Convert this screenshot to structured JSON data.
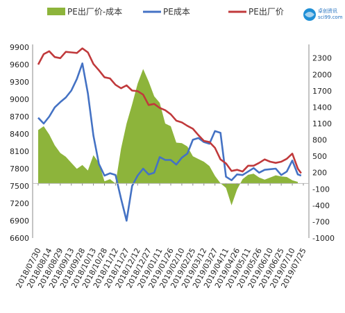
{
  "logo": {
    "line1": "卓创资讯",
    "line2": "sci99.com"
  },
  "chart_data": {
    "type": "line",
    "title": "",
    "xlabel": "",
    "ylabel_left": "",
    "ylabel_right": "",
    "left_axis": {
      "min": 6600,
      "max": 9900,
      "step": 300,
      "ticks": [
        "6600",
        "6900",
        "7200",
        "7500",
        "7800",
        "8100",
        "8400",
        "8700",
        "9000",
        "9300",
        "9600",
        "9900"
      ]
    },
    "right_axis": {
      "min": -1000,
      "max": 2500,
      "step": 300,
      "ticks": [
        "-1000",
        "-700",
        "-400",
        "-100",
        "200",
        "500",
        "800",
        "1100",
        "1400",
        "1700",
        "2000",
        "2300"
      ]
    },
    "x_ticks": [
      "2018/07/30",
      "2018/08/14",
      "2018/08/29",
      "2018/09/13",
      "2018/09/28",
      "2018/10/13",
      "2018/10/28",
      "2018/11/12",
      "2018/11/27",
      "2018/12/12",
      "2018/12/27",
      "2019/01/11",
      "2019/01/26",
      "2019/02/10",
      "2019/02/25",
      "2019/03/12",
      "2019/03/27",
      "2019/04/11",
      "2019/04/26",
      "2019/05/11",
      "2019/05/26",
      "2019/06/10",
      "2019/06/25",
      "2019/07/10",
      "2019/07/25"
    ],
    "grid": false,
    "legend_position": "top",
    "series": [
      {
        "name": "PE出厂价-成本",
        "kind": "area",
        "axis": "right",
        "color": "#8db43b",
        "x": [
          0,
          0.5,
          1,
          1.5,
          2,
          2.5,
          3,
          3.5,
          4,
          4.5,
          5,
          5.5,
          6,
          6.5,
          7,
          7.5,
          8,
          8.5,
          9,
          9.5,
          10,
          10.5,
          11,
          11.5,
          12,
          12.5,
          13,
          13.5,
          14,
          14.5,
          15,
          15.5,
          16,
          16.5,
          17,
          17.5,
          18,
          18.5,
          19,
          19.5,
          20,
          20.5,
          21,
          21.5,
          22,
          22.5,
          23,
          23.5
        ],
        "values": [
          980,
          1050,
          900,
          700,
          560,
          490,
          380,
          270,
          340,
          240,
          520,
          380,
          40,
          80,
          0,
          640,
          1100,
          1450,
          1830,
          2100,
          1870,
          1600,
          1480,
          1100,
          1050,
          750,
          740,
          680,
          500,
          450,
          400,
          320,
          140,
          5,
          -80,
          -400,
          -110,
          80,
          160,
          180,
          110,
          70,
          110,
          150,
          130,
          120,
          60,
          30
        ]
      },
      {
        "name": "PE成本",
        "kind": "line",
        "axis": "left",
        "color": "#4472c4",
        "x": [
          0,
          0.5,
          1,
          1.5,
          2,
          2.5,
          3,
          3.5,
          4,
          4.5,
          5,
          5.5,
          6,
          6.5,
          7,
          7.5,
          8,
          8.5,
          9,
          9.5,
          10,
          10.5,
          11,
          11.5,
          12,
          12.5,
          13,
          13.5,
          14,
          14.5,
          15,
          15.5,
          16,
          16.5,
          17,
          17.5,
          18,
          18.5,
          19,
          19.5,
          20,
          20.5,
          21,
          21.5,
          22,
          22.5,
          23,
          23.5,
          23.8
        ],
        "values": [
          8680,
          8580,
          8700,
          8860,
          8950,
          9030,
          9150,
          9350,
          9620,
          9100,
          8370,
          7880,
          7680,
          7720,
          7690,
          7280,
          6900,
          7500,
          7680,
          7800,
          7700,
          7730,
          8000,
          7950,
          7950,
          7870,
          7990,
          8060,
          8300,
          8330,
          8260,
          8230,
          8450,
          8420,
          7660,
          7600,
          7700,
          7690,
          7750,
          7810,
          7730,
          7780,
          7790,
          7800,
          7690,
          7750,
          7940,
          7700,
          7680
        ]
      },
      {
        "name": "PE出厂价",
        "kind": "line",
        "axis": "left",
        "color": "#c0393b",
        "x": [
          0,
          0.5,
          1,
          1.5,
          2,
          2.5,
          3,
          3.5,
          4,
          4.5,
          5,
          5.5,
          6,
          6.5,
          7,
          7.5,
          8,
          8.5,
          9,
          9.5,
          10,
          10.5,
          11,
          11.5,
          12,
          12.5,
          13,
          13.5,
          14,
          14.5,
          15,
          15.5,
          16,
          16.5,
          17,
          17.5,
          18,
          18.5,
          19,
          19.5,
          20,
          20.5,
          21,
          21.5,
          22,
          22.5,
          23,
          23.5,
          23.8
        ],
        "values": [
          9600,
          9780,
          9830,
          9730,
          9710,
          9820,
          9810,
          9800,
          9880,
          9810,
          9610,
          9500,
          9380,
          9360,
          9250,
          9190,
          9240,
          9150,
          9140,
          9080,
          8900,
          8920,
          8850,
          8810,
          8740,
          8630,
          8600,
          8540,
          8490,
          8380,
          8280,
          8260,
          8160,
          7960,
          7890,
          7760,
          7780,
          7750,
          7850,
          7850,
          7900,
          7960,
          7920,
          7900,
          7920,
          7970,
          8060,
          7800,
          7720
        ]
      }
    ]
  }
}
